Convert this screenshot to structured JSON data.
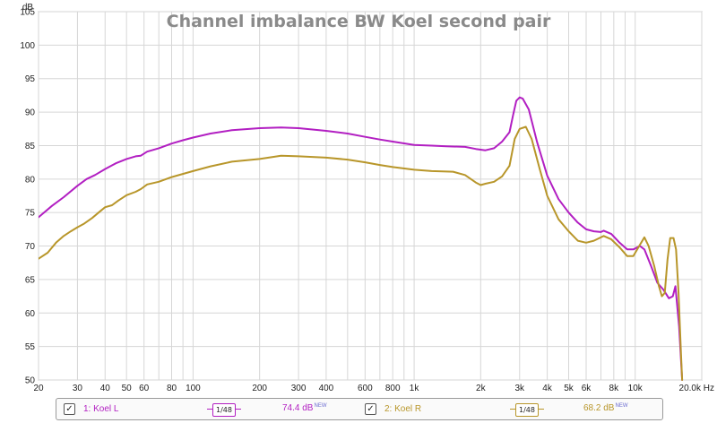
{
  "chart_data": {
    "type": "line",
    "title": "Channel imbalance BW Koel second pair",
    "ylabel": "dB",
    "xunit": "Hz",
    "xscale": "log",
    "xlim": [
      20,
      20000
    ],
    "ylim": [
      50,
      105
    ],
    "y_ticks": [
      50,
      55,
      60,
      65,
      70,
      75,
      80,
      85,
      90,
      95,
      100,
      105
    ],
    "x_ticks": [
      {
        "value": 20,
        "label": "20"
      },
      {
        "value": 30,
        "label": "30"
      },
      {
        "value": 40,
        "label": "40"
      },
      {
        "value": 50,
        "label": "50"
      },
      {
        "value": 60,
        "label": "60"
      },
      {
        "value": 80,
        "label": "80"
      },
      {
        "value": 100,
        "label": "100"
      },
      {
        "value": 200,
        "label": "200"
      },
      {
        "value": 300,
        "label": "300"
      },
      {
        "value": 400,
        "label": "400"
      },
      {
        "value": 600,
        "label": "600"
      },
      {
        "value": 800,
        "label": "800"
      },
      {
        "value": 1000,
        "label": "1k"
      },
      {
        "value": 2000,
        "label": "2k"
      },
      {
        "value": 3000,
        "label": "3k"
      },
      {
        "value": 4000,
        "label": "4k"
      },
      {
        "value": 5000,
        "label": "5k"
      },
      {
        "value": 6000,
        "label": "6k"
      },
      {
        "value": 8000,
        "label": "8k"
      },
      {
        "value": 10000,
        "label": "10k"
      },
      {
        "value": 20000,
        "label": "20.0k Hz"
      }
    ],
    "grid": true,
    "series": [
      {
        "name": "1: Koel L",
        "color": "#b21fc2",
        "points": [
          [
            20,
            74.3
          ],
          [
            23,
            76.0
          ],
          [
            26,
            77.3
          ],
          [
            30,
            79.0
          ],
          [
            33,
            80.0
          ],
          [
            36,
            80.6
          ],
          [
            40,
            81.5
          ],
          [
            45,
            82.4
          ],
          [
            50,
            83.0
          ],
          [
            55,
            83.4
          ],
          [
            58,
            83.5
          ],
          [
            62,
            84.1
          ],
          [
            70,
            84.6
          ],
          [
            80,
            85.3
          ],
          [
            90,
            85.8
          ],
          [
            100,
            86.2
          ],
          [
            120,
            86.8
          ],
          [
            150,
            87.3
          ],
          [
            200,
            87.6
          ],
          [
            250,
            87.7
          ],
          [
            300,
            87.6
          ],
          [
            400,
            87.2
          ],
          [
            500,
            86.8
          ],
          [
            600,
            86.3
          ],
          [
            700,
            85.9
          ],
          [
            800,
            85.6
          ],
          [
            1000,
            85.1
          ],
          [
            1200,
            85.0
          ],
          [
            1400,
            84.9
          ],
          [
            1700,
            84.8
          ],
          [
            1900,
            84.5
          ],
          [
            2100,
            84.3
          ],
          [
            2300,
            84.6
          ],
          [
            2500,
            85.6
          ],
          [
            2700,
            87.0
          ],
          [
            2800,
            89.5
          ],
          [
            2900,
            91.7
          ],
          [
            3000,
            92.2
          ],
          [
            3100,
            92.0
          ],
          [
            3300,
            90.4
          ],
          [
            3600,
            85.5
          ],
          [
            4000,
            80.5
          ],
          [
            4500,
            77.0
          ],
          [
            5000,
            75.0
          ],
          [
            5500,
            73.5
          ],
          [
            6000,
            72.5
          ],
          [
            6500,
            72.2
          ],
          [
            7000,
            72.1
          ],
          [
            7200,
            72.3
          ],
          [
            7800,
            71.8
          ],
          [
            8500,
            70.5
          ],
          [
            9200,
            69.5
          ],
          [
            9800,
            69.5
          ],
          [
            10500,
            70.0
          ],
          [
            11000,
            69.5
          ],
          [
            11800,
            67.0
          ],
          [
            12600,
            64.5
          ],
          [
            13400,
            63.5
          ],
          [
            14200,
            62.2
          ],
          [
            14800,
            62.5
          ],
          [
            15200,
            64.0
          ],
          [
            15800,
            58.0
          ],
          [
            16300,
            50.0
          ]
        ]
      },
      {
        "name": "2: Koel R",
        "color": "#b8962a",
        "points": [
          [
            20,
            68.1
          ],
          [
            22,
            69.0
          ],
          [
            24,
            70.5
          ],
          [
            26,
            71.5
          ],
          [
            28,
            72.2
          ],
          [
            30,
            72.8
          ],
          [
            32,
            73.3
          ],
          [
            35,
            74.2
          ],
          [
            38,
            75.2
          ],
          [
            40,
            75.8
          ],
          [
            43,
            76.1
          ],
          [
            46,
            76.8
          ],
          [
            50,
            77.6
          ],
          [
            55,
            78.1
          ],
          [
            58,
            78.5
          ],
          [
            62,
            79.2
          ],
          [
            70,
            79.6
          ],
          [
            80,
            80.3
          ],
          [
            100,
            81.2
          ],
          [
            120,
            81.9
          ],
          [
            150,
            82.6
          ],
          [
            200,
            83.0
          ],
          [
            250,
            83.5
          ],
          [
            300,
            83.4
          ],
          [
            400,
            83.2
          ],
          [
            500,
            82.9
          ],
          [
            600,
            82.5
          ],
          [
            700,
            82.1
          ],
          [
            800,
            81.8
          ],
          [
            1000,
            81.4
          ],
          [
            1200,
            81.2
          ],
          [
            1500,
            81.1
          ],
          [
            1700,
            80.6
          ],
          [
            1900,
            79.5
          ],
          [
            2000,
            79.1
          ],
          [
            2100,
            79.3
          ],
          [
            2300,
            79.6
          ],
          [
            2500,
            80.4
          ],
          [
            2700,
            82.0
          ],
          [
            2850,
            86.0
          ],
          [
            3000,
            87.5
          ],
          [
            3200,
            87.8
          ],
          [
            3400,
            86.0
          ],
          [
            3700,
            81.5
          ],
          [
            4000,
            77.5
          ],
          [
            4500,
            74.0
          ],
          [
            5000,
            72.2
          ],
          [
            5500,
            70.8
          ],
          [
            6000,
            70.5
          ],
          [
            6500,
            70.8
          ],
          [
            7200,
            71.5
          ],
          [
            7800,
            71.0
          ],
          [
            8500,
            69.8
          ],
          [
            9200,
            68.5
          ],
          [
            9800,
            68.5
          ],
          [
            10500,
            70.2
          ],
          [
            11000,
            71.3
          ],
          [
            11500,
            70.0
          ],
          [
            12200,
            67.0
          ],
          [
            12800,
            64.0
          ],
          [
            13200,
            62.5
          ],
          [
            13600,
            63.0
          ],
          [
            14000,
            68.0
          ],
          [
            14400,
            71.2
          ],
          [
            14900,
            71.2
          ],
          [
            15300,
            69.5
          ],
          [
            15700,
            63.0
          ],
          [
            16100,
            54.0
          ],
          [
            16300,
            50.0
          ]
        ]
      }
    ]
  },
  "legend": {
    "series1": {
      "label": "1: Koel L",
      "smoothing": "1/48",
      "value": "74.4 dB",
      "badge": "NEW",
      "checked": "✓"
    },
    "series2": {
      "label": "2: Koel R",
      "smoothing": "1/48",
      "value": "68.2 dB",
      "badge": "NEW",
      "checked": "✓"
    }
  }
}
